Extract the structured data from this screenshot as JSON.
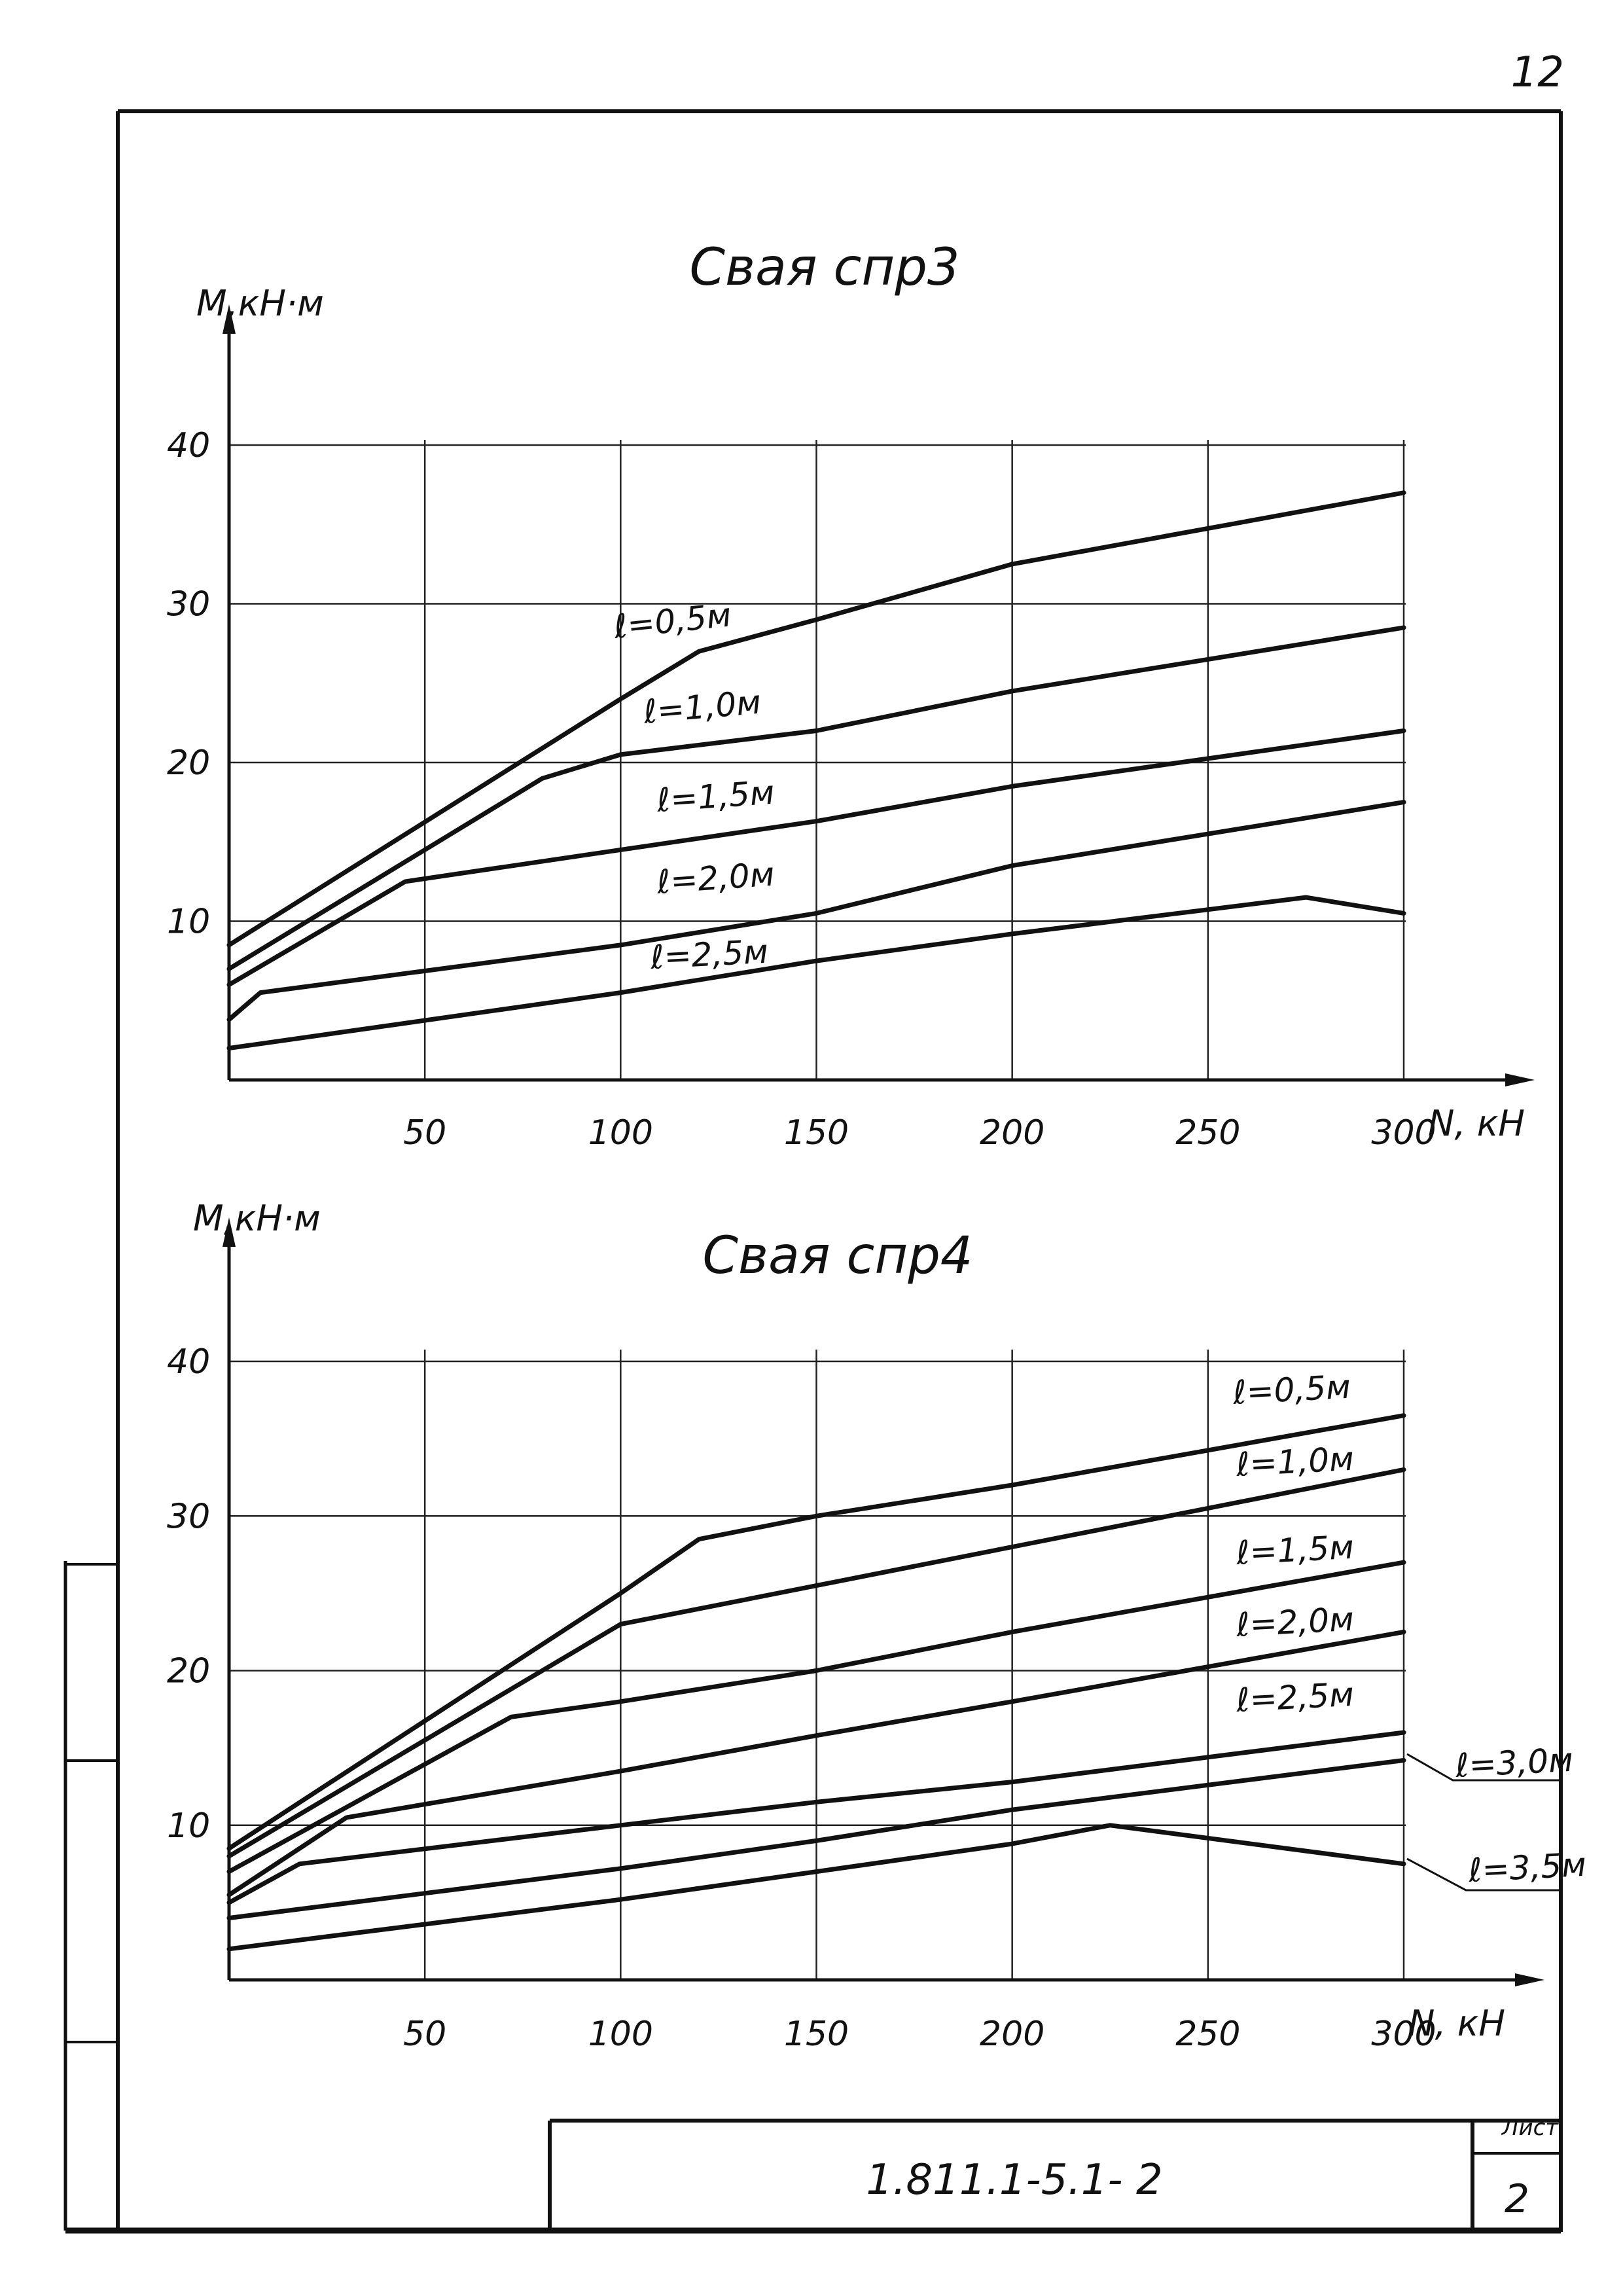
{
  "page_number": "12",
  "stamp": {
    "code": "1.811.1-5.1- 2",
    "sheet_label": "Лист",
    "sheet_number": "2"
  },
  "chart_data": [
    {
      "type": "line",
      "title": "Свая спр3",
      "xlabel": "N, кН",
      "ylabel": "М,кН·м",
      "xlim": [
        0,
        300
      ],
      "ylim": [
        0,
        40
      ],
      "x_ticks": [
        50,
        100,
        150,
        200,
        250,
        300
      ],
      "x_tick_labels": [
        "50",
        "100",
        "150",
        "200",
        "250",
        "300"
      ],
      "y_ticks": [
        10,
        20,
        30,
        40
      ],
      "y_tick_labels": [
        "10",
        "20",
        "30",
        "40"
      ],
      "grid": true,
      "series": [
        {
          "name": "ℓ=0,5м",
          "x": [
            0,
            100,
            120,
            150,
            200,
            300
          ],
          "y": [
            8.5,
            24,
            27,
            29,
            32.5,
            37
          ]
        },
        {
          "name": "ℓ=1,0м",
          "x": [
            0,
            80,
            100,
            150,
            200,
            300
          ],
          "y": [
            7,
            19,
            20.5,
            22,
            24.5,
            28.5
          ]
        },
        {
          "name": "ℓ=1,5м",
          "x": [
            0,
            45,
            100,
            150,
            200,
            300
          ],
          "y": [
            6,
            12.5,
            14.5,
            16.3,
            18.5,
            22
          ]
        },
        {
          "name": "ℓ=2,0м",
          "x": [
            0,
            8,
            100,
            150,
            200,
            300
          ],
          "y": [
            3.8,
            5.5,
            8.5,
            10.5,
            13.5,
            17.5
          ]
        },
        {
          "name": "ℓ=2,5м",
          "x": [
            0,
            100,
            150,
            200,
            275,
            300
          ],
          "y": [
            2,
            5.5,
            7.5,
            9.2,
            11.5,
            10.5
          ]
        }
      ]
    },
    {
      "type": "line",
      "title": "Свая спр4",
      "xlabel": "N, кН",
      "ylabel": "М,кН·м",
      "xlim": [
        0,
        300
      ],
      "ylim": [
        0,
        40
      ],
      "x_ticks": [
        50,
        100,
        150,
        200,
        250,
        300
      ],
      "x_tick_labels": [
        "50",
        "100",
        "150",
        "200",
        "250",
        "300"
      ],
      "y_ticks": [
        10,
        20,
        30,
        40
      ],
      "y_tick_labels": [
        "10",
        "20",
        "30",
        "40"
      ],
      "grid": true,
      "series": [
        {
          "name": "ℓ=0,5м",
          "x": [
            0,
            100,
            120,
            150,
            200,
            300
          ],
          "y": [
            8.5,
            25,
            28.5,
            30,
            32,
            36.5
          ]
        },
        {
          "name": "ℓ=1,0м",
          "x": [
            0,
            100,
            150,
            200,
            300
          ],
          "y": [
            8,
            23,
            25.5,
            28,
            33
          ]
        },
        {
          "name": "ℓ=1,5м",
          "x": [
            0,
            72,
            100,
            150,
            200,
            300
          ],
          "y": [
            7,
            17,
            18,
            20,
            22.5,
            27
          ]
        },
        {
          "name": "ℓ=2,0м",
          "x": [
            0,
            30,
            100,
            150,
            200,
            300
          ],
          "y": [
            5.5,
            10.5,
            13.5,
            15.8,
            18,
            22.5
          ]
        },
        {
          "name": "ℓ=2,5м",
          "x": [
            0,
            18,
            100,
            150,
            200,
            300
          ],
          "y": [
            5,
            7.5,
            10,
            11.5,
            12.8,
            16
          ]
        },
        {
          "name": "ℓ=3,0м",
          "x": [
            0,
            100,
            150,
            200,
            300
          ],
          "y": [
            4,
            7.2,
            9,
            11,
            14.2
          ]
        },
        {
          "name": "ℓ=3,5м",
          "x": [
            0,
            100,
            150,
            200,
            225,
            300
          ],
          "y": [
            2,
            5.2,
            7,
            8.8,
            10,
            7.5
          ]
        }
      ]
    }
  ]
}
